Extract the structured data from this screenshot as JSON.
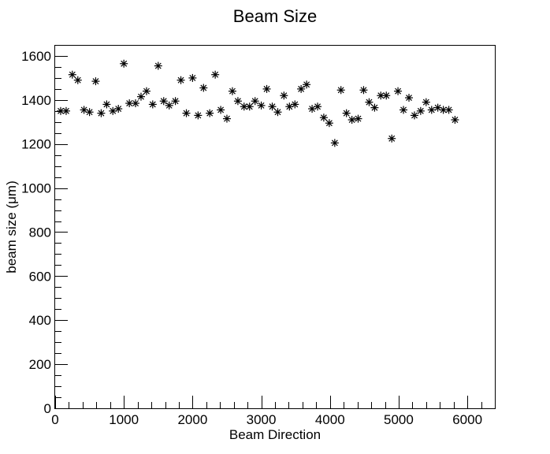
{
  "chart_data": {
    "type": "scatter",
    "title": "Beam Size",
    "xlabel": "Beam Direction",
    "ylabel": "beam size (μm)",
    "xlim": [
      0,
      6400
    ],
    "ylim": [
      0,
      1650
    ],
    "xticks": [
      0,
      1000,
      2000,
      3000,
      4000,
      5000,
      6000
    ],
    "yticks": [
      0,
      200,
      400,
      600,
      800,
      1000,
      1200,
      1400,
      1600
    ],
    "marker": "asterisk",
    "color": "#000000",
    "grid": false,
    "points": [
      {
        "x": 80,
        "y": 1350
      },
      {
        "x": 160,
        "y": 1350
      },
      {
        "x": 250,
        "y": 1515
      },
      {
        "x": 330,
        "y": 1490
      },
      {
        "x": 420,
        "y": 1355
      },
      {
        "x": 500,
        "y": 1345
      },
      {
        "x": 590,
        "y": 1485
      },
      {
        "x": 670,
        "y": 1340
      },
      {
        "x": 750,
        "y": 1380
      },
      {
        "x": 840,
        "y": 1350
      },
      {
        "x": 920,
        "y": 1360
      },
      {
        "x": 1000,
        "y": 1565
      },
      {
        "x": 1080,
        "y": 1385
      },
      {
        "x": 1170,
        "y": 1385
      },
      {
        "x": 1250,
        "y": 1415
      },
      {
        "x": 1330,
        "y": 1440
      },
      {
        "x": 1420,
        "y": 1380
      },
      {
        "x": 1500,
        "y": 1555
      },
      {
        "x": 1580,
        "y": 1395
      },
      {
        "x": 1660,
        "y": 1375
      },
      {
        "x": 1750,
        "y": 1395
      },
      {
        "x": 1830,
        "y": 1490
      },
      {
        "x": 1910,
        "y": 1340
      },
      {
        "x": 2000,
        "y": 1500
      },
      {
        "x": 2080,
        "y": 1330
      },
      {
        "x": 2160,
        "y": 1455
      },
      {
        "x": 2250,
        "y": 1340
      },
      {
        "x": 2330,
        "y": 1515
      },
      {
        "x": 2410,
        "y": 1355
      },
      {
        "x": 2500,
        "y": 1315
      },
      {
        "x": 2580,
        "y": 1440
      },
      {
        "x": 2660,
        "y": 1395
      },
      {
        "x": 2750,
        "y": 1370
      },
      {
        "x": 2830,
        "y": 1370
      },
      {
        "x": 2910,
        "y": 1395
      },
      {
        "x": 3000,
        "y": 1375
      },
      {
        "x": 3080,
        "y": 1450
      },
      {
        "x": 3160,
        "y": 1370
      },
      {
        "x": 3240,
        "y": 1345
      },
      {
        "x": 3330,
        "y": 1420
      },
      {
        "x": 3410,
        "y": 1370
      },
      {
        "x": 3490,
        "y": 1380
      },
      {
        "x": 3580,
        "y": 1450
      },
      {
        "x": 3660,
        "y": 1470
      },
      {
        "x": 3740,
        "y": 1360
      },
      {
        "x": 3820,
        "y": 1370
      },
      {
        "x": 3910,
        "y": 1320
      },
      {
        "x": 3990,
        "y": 1295
      },
      {
        "x": 4070,
        "y": 1205
      },
      {
        "x": 4160,
        "y": 1445
      },
      {
        "x": 4240,
        "y": 1340
      },
      {
        "x": 4320,
        "y": 1310
      },
      {
        "x": 4410,
        "y": 1315
      },
      {
        "x": 4490,
        "y": 1445
      },
      {
        "x": 4570,
        "y": 1390
      },
      {
        "x": 4650,
        "y": 1365
      },
      {
        "x": 4740,
        "y": 1420
      },
      {
        "x": 4820,
        "y": 1420
      },
      {
        "x": 4900,
        "y": 1225
      },
      {
        "x": 4990,
        "y": 1440
      },
      {
        "x": 5070,
        "y": 1355
      },
      {
        "x": 5150,
        "y": 1410
      },
      {
        "x": 5230,
        "y": 1330
      },
      {
        "x": 5320,
        "y": 1350
      },
      {
        "x": 5400,
        "y": 1390
      },
      {
        "x": 5480,
        "y": 1355
      },
      {
        "x": 5570,
        "y": 1365
      },
      {
        "x": 5650,
        "y": 1355
      },
      {
        "x": 5730,
        "y": 1355
      },
      {
        "x": 5820,
        "y": 1310
      }
    ]
  }
}
